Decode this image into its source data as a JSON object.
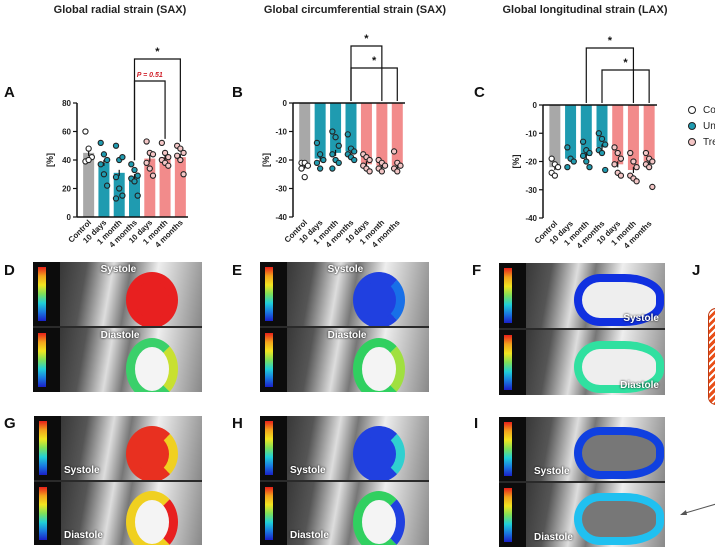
{
  "titles": [
    "Global radial strain (SAX)",
    "Global circumferential strain (SAX)",
    "Global longitudinal strain (LAX)"
  ],
  "panel_letters": [
    "A",
    "B",
    "C",
    "D",
    "E",
    "F",
    "G",
    "H",
    "I",
    "J"
  ],
  "legend": [
    {
      "label": "Co",
      "color": "#ffffff"
    },
    {
      "label": "Un",
      "color": "#1f9bb0"
    },
    {
      "label": "Tre",
      "color": "#f4c6c6"
    }
  ],
  "image_labels": {
    "systole": "Systole",
    "diastole": "Diastole"
  },
  "colors": {
    "control": "#a8a8a8",
    "untreated": "#1f9bb0",
    "treated": "#f28b8b",
    "pvalue": "#d0202a"
  },
  "chart_data": [
    {
      "type": "bar",
      "title": "Global radial strain (SAX)",
      "ylabel": "[%]",
      "ylim": [
        0,
        80
      ],
      "yticks": [
        0,
        20,
        40,
        60,
        80
      ],
      "categories": [
        "Control",
        "10 days",
        "1 month",
        "4 months",
        "10 days",
        "1 month",
        "4 months"
      ],
      "groups": [
        "control",
        "untreated",
        "untreated",
        "untreated",
        "treated",
        "treated",
        "treated"
      ],
      "values": [
        45,
        38,
        31,
        28,
        41,
        42,
        42
      ],
      "points": [
        [
          60,
          48,
          42,
          39,
          40
        ],
        [
          52,
          44,
          40,
          37,
          30,
          22
        ],
        [
          50,
          40,
          42,
          28,
          20,
          15,
          13
        ],
        [
          37,
          33,
          29,
          27,
          25,
          15
        ],
        [
          53,
          45,
          44,
          38,
          34,
          29
        ],
        [
          52,
          45,
          42,
          40,
          38,
          36
        ],
        [
          50,
          48,
          45,
          43,
          40,
          30
        ]
      ],
      "annotations": [
        {
          "from": 3,
          "to": 6,
          "text": "*",
          "level": 2
        },
        {
          "from": 3,
          "to": 5,
          "text": "P = 0.51",
          "level": 1,
          "color": "#d0202a"
        }
      ]
    },
    {
      "type": "bar",
      "title": "Global circumferential strain (SAX)",
      "ylabel": "[%]",
      "ylim": [
        -40,
        0
      ],
      "yticks": [
        0,
        -10,
        -20,
        -30,
        -40
      ],
      "categories": [
        "Control",
        "10 days",
        "1 month",
        "4 months",
        "10 days",
        "1 month",
        "4 months"
      ],
      "groups": [
        "control",
        "untreated",
        "untreated",
        "untreated",
        "treated",
        "treated",
        "treated"
      ],
      "values": [
        -22,
        -19.5,
        -17.5,
        -17,
        -21.5,
        -22,
        -22
      ],
      "points": [
        [
          -21,
          -21,
          -22,
          -23,
          -26
        ],
        [
          -14,
          -18,
          -20,
          -21,
          -23
        ],
        [
          -10,
          -12,
          -15,
          -18,
          -20,
          -21,
          -23
        ],
        [
          -11,
          -16,
          -17,
          -18,
          -19,
          -20
        ],
        [
          -18,
          -19,
          -20,
          -22,
          -23,
          -24
        ],
        [
          -20,
          -21,
          -22,
          -23,
          -24
        ],
        [
          -17,
          -21,
          -22,
          -23,
          -24
        ]
      ],
      "annotations": [
        {
          "from": 3,
          "to": 5,
          "text": "*",
          "level": 2
        },
        {
          "from": 3,
          "to": 6,
          "text": "*",
          "level": 1
        }
      ]
    },
    {
      "type": "bar",
      "title": "Global longitudinal strain (LAX)",
      "ylabel": "[%]",
      "ylim": [
        -40,
        0
      ],
      "yticks": [
        0,
        -10,
        -20,
        -30,
        -40
      ],
      "categories": [
        "Control",
        "10 days",
        "1 month",
        "4 months",
        "10 days",
        "1 month",
        "4 months"
      ],
      "groups": [
        "control",
        "untreated",
        "untreated",
        "untreated",
        "treated",
        "treated",
        "treated"
      ],
      "values": [
        -22,
        -19,
        -18,
        -15,
        -21,
        -23,
        -20
      ],
      "points": [
        [
          -19,
          -21,
          -22,
          -24,
          -25
        ],
        [
          -15,
          -19,
          -20,
          -22
        ],
        [
          -13,
          -16,
          -17,
          -18,
          -20,
          -22
        ],
        [
          -10,
          -12,
          -14,
          -16,
          -17,
          -23
        ],
        [
          -15,
          -17,
          -19,
          -21,
          -24,
          -25
        ],
        [
          -17,
          -20,
          -22,
          -25,
          -26,
          -27
        ],
        [
          -17,
          -19,
          -20,
          -21,
          -22,
          -29
        ]
      ],
      "annotations": [
        {
          "from": 2,
          "to": 5,
          "text": "*",
          "level": 2
        },
        {
          "from": 3,
          "to": 6,
          "text": "*",
          "level": 1
        }
      ]
    }
  ]
}
